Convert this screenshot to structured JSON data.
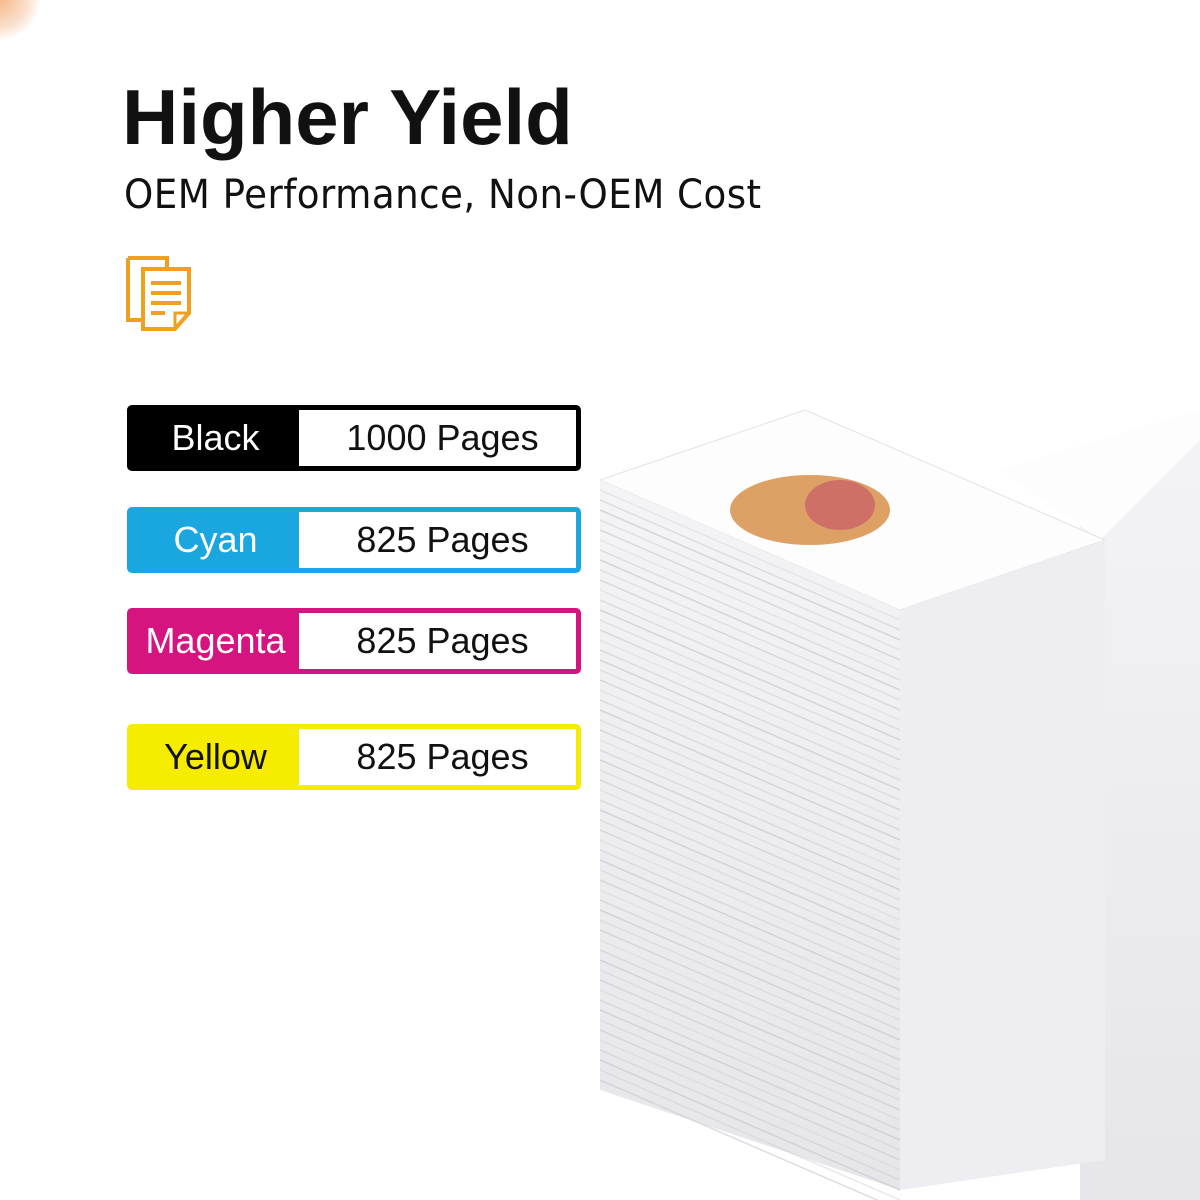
{
  "header": {
    "title": "Higher Yield",
    "subtitle": "OEM Performance, Non-OEM Cost",
    "icon": "documents-icon",
    "icon_color": "#f0a020"
  },
  "yields": [
    {
      "color_name": "Black",
      "pages": "1000 Pages",
      "color": "#000000",
      "label_text_color": "#ffffff"
    },
    {
      "color_name": "Cyan",
      "pages": "825 Pages",
      "color": "#1aa7e0",
      "label_text_color": "#ffffff"
    },
    {
      "color_name": "Magenta",
      "pages": "825 Pages",
      "color": "#d6147f",
      "label_text_color": "#ffffff"
    },
    {
      "color_name": "Yellow",
      "pages": "825 Pages",
      "color": "#f5ec00",
      "label_text_color": "#111111"
    }
  ]
}
